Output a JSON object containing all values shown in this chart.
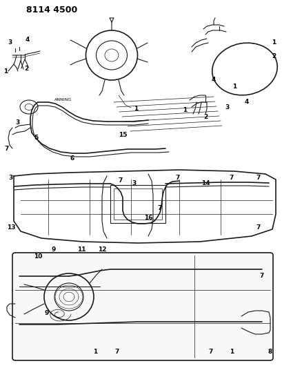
{
  "title": "8114 4500",
  "bg_color": "#ffffff",
  "line_color": "#1a1a1a",
  "title_fontsize": 9,
  "label_fontsize": 6.5,
  "figsize": [
    4.1,
    5.33
  ],
  "dpi": 100
}
